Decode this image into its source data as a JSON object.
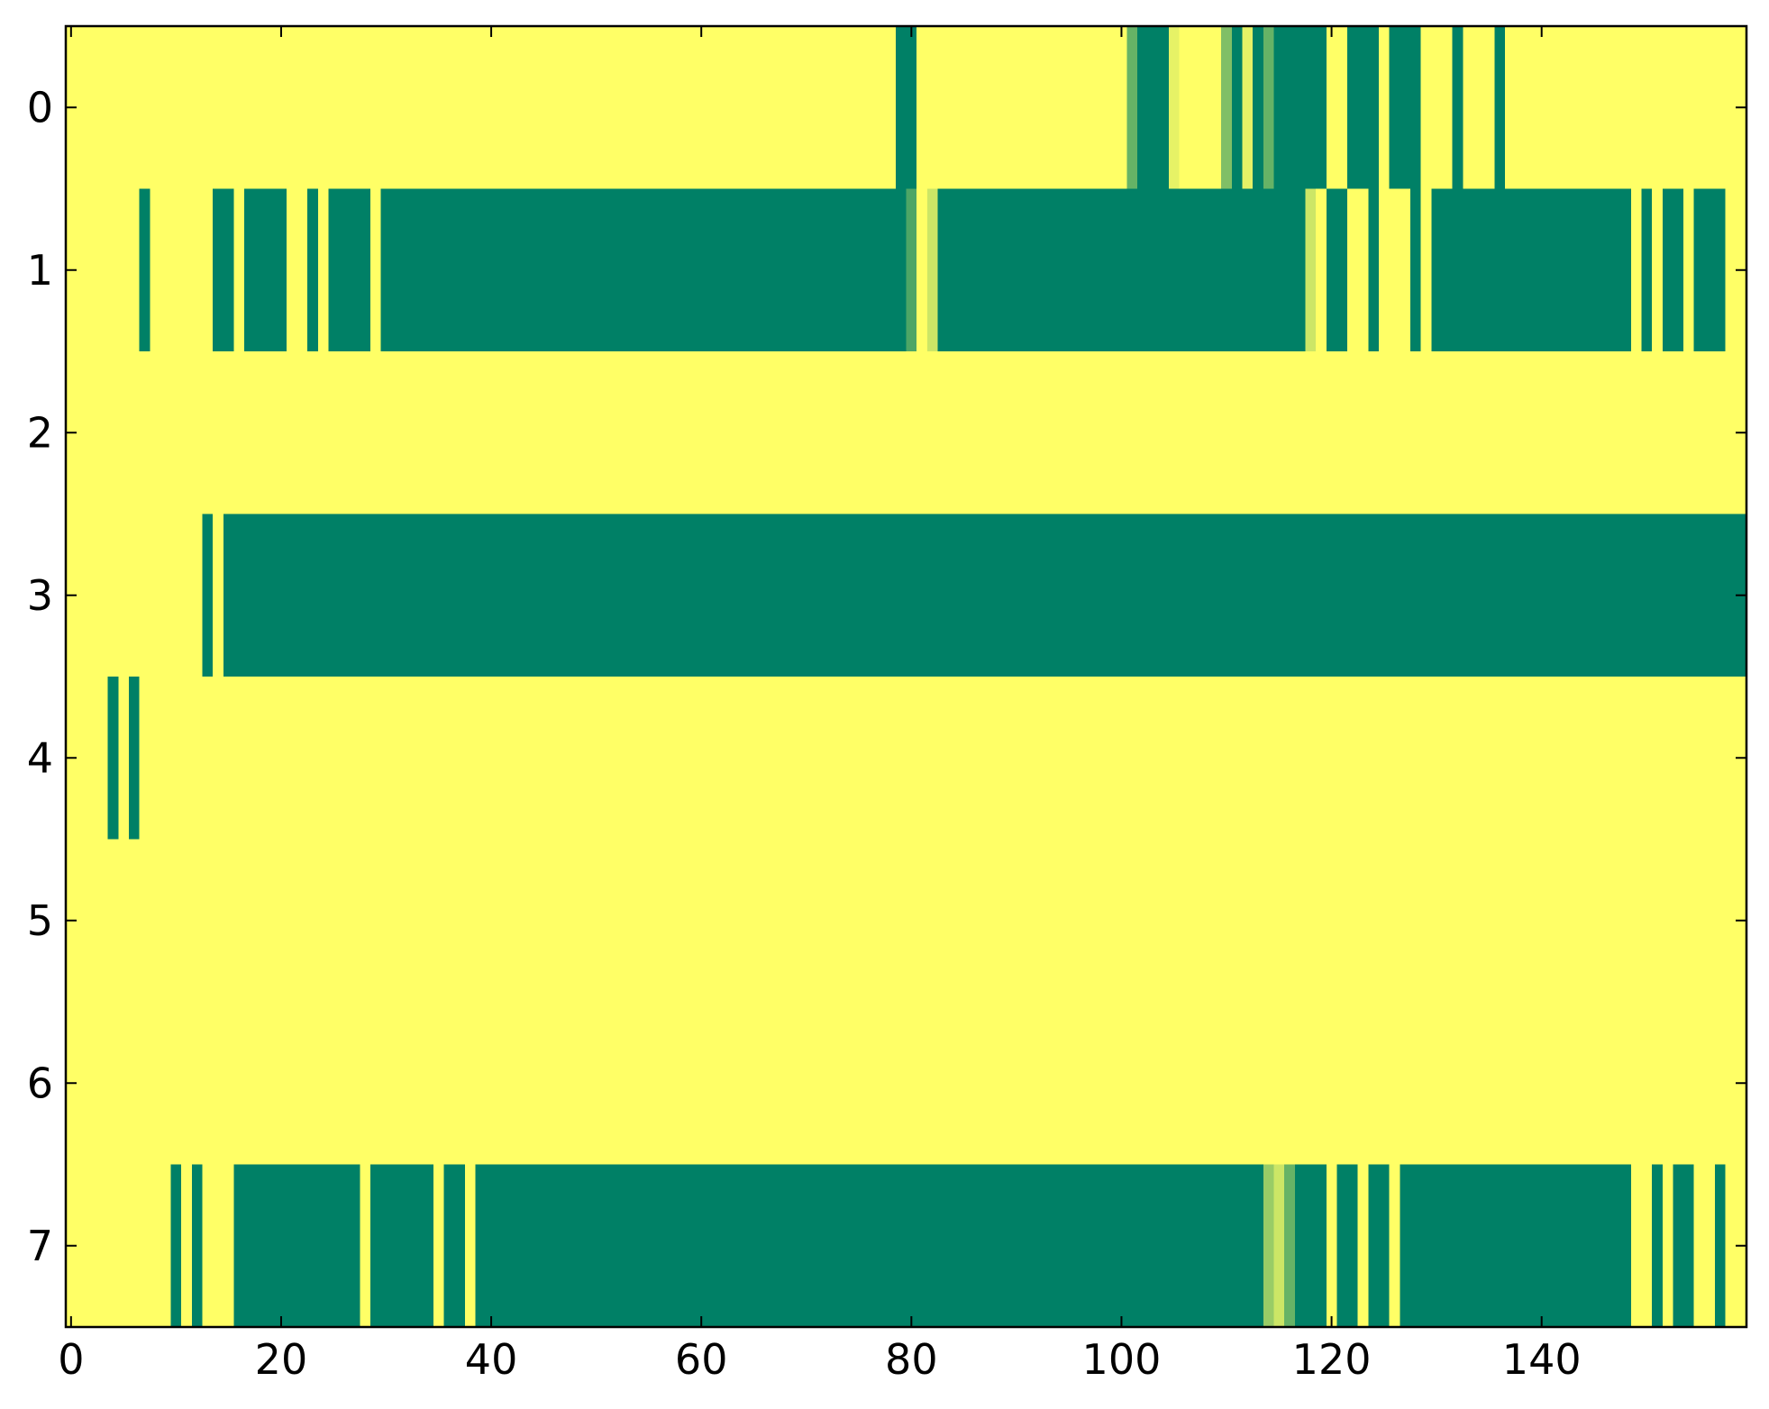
{
  "chart_data": {
    "type": "heatmap",
    "colormap": "summer",
    "xlim": [
      -0.5,
      159.5
    ],
    "ylim": [
      7.5,
      -0.5
    ],
    "xticks": [
      0,
      20,
      40,
      60,
      80,
      100,
      120,
      140
    ],
    "yticks": [
      0,
      1,
      2,
      3,
      4,
      5,
      6,
      7
    ],
    "values": [
      [
        1,
        1,
        1,
        1,
        1,
        1,
        1,
        1,
        1,
        1,
        1,
        1,
        1,
        1,
        1,
        1,
        1,
        1,
        1,
        1,
        1,
        1,
        1,
        1,
        1,
        1,
        1,
        1,
        1,
        1,
        1,
        1,
        1,
        1,
        1,
        1,
        1,
        1,
        1,
        1,
        1,
        1,
        1,
        1,
        1,
        1,
        1,
        1,
        1,
        1,
        1,
        1,
        1,
        1,
        1,
        1,
        1,
        1,
        1,
        1,
        1,
        1,
        1,
        1,
        1,
        1,
        1,
        1,
        1,
        1,
        1,
        1,
        1,
        1,
        1,
        1,
        1,
        1,
        1,
        0,
        0,
        1,
        1,
        1,
        1,
        1,
        1,
        1,
        1,
        1,
        1,
        1,
        1,
        1,
        1,
        1,
        1,
        1,
        1,
        1,
        1,
        0.4,
        0,
        0,
        0,
        0.9,
        1,
        1,
        1,
        1,
        0.5,
        0,
        0.9,
        0,
        0.4,
        0,
        0,
        0,
        0,
        0,
        1,
        1,
        0,
        0,
        0,
        1,
        0,
        0,
        0,
        1,
        1,
        1,
        0,
        1,
        1,
        1,
        0,
        1,
        1,
        1,
        1,
        1,
        1,
        1,
        1,
        1,
        1,
        1,
        1,
        1,
        1,
        1,
        1,
        1,
        1,
        1,
        1,
        1,
        1,
        1
      ],
      [
        1,
        1,
        1,
        1,
        1,
        1,
        1,
        0,
        1,
        1,
        1,
        1,
        1,
        1,
        0,
        0,
        1,
        0,
        0,
        0,
        0,
        1,
        1,
        0,
        1,
        0,
        0,
        0,
        0,
        1,
        0,
        0,
        0,
        0,
        0,
        0,
        0,
        0,
        0,
        0,
        0,
        0,
        0,
        0,
        0,
        0,
        0,
        0,
        0,
        0,
        0,
        0,
        0,
        0,
        0,
        0,
        0,
        0,
        0,
        0,
        0,
        0,
        0,
        0,
        0,
        0,
        0,
        0,
        0,
        0,
        0,
        0,
        0,
        0,
        0,
        0,
        0,
        0,
        0,
        0,
        0.3,
        1,
        0.8,
        0,
        0,
        0,
        0,
        0,
        0,
        0,
        0,
        0,
        0,
        0,
        0,
        0,
        0,
        0,
        0,
        0,
        0,
        0,
        0,
        0,
        0,
        0,
        0,
        0,
        0,
        0,
        0,
        0,
        0,
        0,
        0,
        0,
        0,
        0,
        0.8,
        1,
        0,
        0,
        1,
        1,
        0,
        1,
        1,
        1,
        0,
        1,
        0,
        0,
        0,
        0,
        0,
        0,
        0,
        0,
        0,
        0,
        0,
        0,
        0,
        0,
        0,
        0,
        0,
        0,
        0,
        1,
        0,
        1,
        0,
        0,
        1,
        0,
        0,
        0,
        1,
        1
      ],
      [
        1,
        1,
        1,
        1,
        1,
        1,
        1,
        1,
        1,
        1,
        1,
        1,
        1,
        1,
        1,
        1,
        1,
        1,
        1,
        1,
        1,
        1,
        1,
        1,
        1,
        1,
        1,
        1,
        1,
        1,
        1,
        1,
        1,
        1,
        1,
        1,
        1,
        1,
        1,
        1,
        1,
        1,
        1,
        1,
        1,
        1,
        1,
        1,
        1,
        1,
        1,
        1,
        1,
        1,
        1,
        1,
        1,
        1,
        1,
        1,
        1,
        1,
        1,
        1,
        1,
        1,
        1,
        1,
        1,
        1,
        1,
        1,
        1,
        1,
        1,
        1,
        1,
        1,
        1,
        1,
        1,
        1,
        1,
        1,
        1,
        1,
        1,
        1,
        1,
        1,
        1,
        1,
        1,
        1,
        1,
        1,
        1,
        1,
        1,
        1,
        1,
        1,
        1,
        1,
        1,
        1,
        1,
        1,
        1,
        1,
        1,
        1,
        1,
        1,
        1,
        1,
        1,
        1,
        1,
        1,
        1,
        1,
        1,
        1,
        1,
        1,
        1,
        1,
        1,
        1,
        1,
        1,
        1,
        1,
        1,
        1,
        1,
        1,
        1,
        1,
        1,
        1,
        1,
        1,
        1,
        1,
        1,
        1,
        1,
        1,
        1,
        1,
        1,
        1,
        1,
        1,
        1,
        1,
        1,
        1
      ],
      [
        1,
        1,
        1,
        1,
        1,
        1,
        1,
        1,
        1,
        1,
        1,
        1,
        1,
        0,
        1,
        0,
        0,
        0,
        0,
        0,
        0,
        0,
        0,
        0,
        0,
        0,
        0,
        0,
        0,
        0,
        0,
        0,
        0,
        0,
        0,
        0,
        0,
        0,
        0,
        0,
        0,
        0,
        0,
        0,
        0,
        0,
        0,
        0,
        0,
        0,
        0,
        0,
        0,
        0,
        0,
        0,
        0,
        0,
        0,
        0,
        0,
        0,
        0,
        0,
        0,
        0,
        0,
        0,
        0,
        0,
        0,
        0,
        0,
        0,
        0,
        0,
        0,
        0,
        0,
        0,
        0,
        0,
        0,
        0,
        0,
        0,
        0,
        0,
        0,
        0,
        0,
        0,
        0,
        0,
        0,
        0,
        0,
        0,
        0,
        0,
        0,
        0,
        0,
        0,
        0,
        0,
        0,
        0,
        0,
        0,
        0,
        0,
        0,
        0,
        0,
        0,
        0,
        0,
        0,
        0,
        0,
        0,
        0,
        0,
        0,
        0,
        0,
        0,
        0,
        0,
        0,
        0,
        0,
        0,
        0,
        0,
        0,
        0,
        0,
        0,
        0,
        0,
        0,
        0,
        0,
        0,
        0,
        0,
        0,
        0,
        0,
        0,
        0,
        0,
        0,
        0,
        0,
        0,
        0,
        0
      ],
      [
        1,
        1,
        1,
        1,
        0,
        1,
        0,
        1,
        1,
        1,
        1,
        1,
        1,
        1,
        1,
        1,
        1,
        1,
        1,
        1,
        1,
        1,
        1,
        1,
        1,
        1,
        1,
        1,
        1,
        1,
        1,
        1,
        1,
        1,
        1,
        1,
        1,
        1,
        1,
        1,
        1,
        1,
        1,
        1,
        1,
        1,
        1,
        1,
        1,
        1,
        1,
        1,
        1,
        1,
        1,
        1,
        1,
        1,
        1,
        1,
        1,
        1,
        1,
        1,
        1,
        1,
        1,
        1,
        1,
        1,
        1,
        1,
        1,
        1,
        1,
        1,
        1,
        1,
        1,
        1,
        1,
        1,
        1,
        1,
        1,
        1,
        1,
        1,
        1,
        1,
        1,
        1,
        1,
        1,
        1,
        1,
        1,
        1,
        1,
        1,
        1,
        1,
        1,
        1,
        1,
        1,
        1,
        1,
        1,
        1,
        1,
        1,
        1,
        1,
        1,
        1,
        1,
        1,
        1,
        1,
        1,
        1,
        1,
        1,
        1,
        1,
        1,
        1,
        1,
        1,
        1,
        1,
        1,
        1,
        1,
        1,
        1,
        1,
        1,
        1,
        1,
        1,
        1,
        1,
        1,
        1,
        1,
        1,
        1,
        1,
        1,
        1,
        1,
        1,
        1,
        1,
        1,
        1,
        1,
        1
      ],
      [
        1,
        1,
        1,
        1,
        1,
        1,
        1,
        1,
        1,
        1,
        1,
        1,
        1,
        1,
        1,
        1,
        1,
        1,
        1,
        1,
        1,
        1,
        1,
        1,
        1,
        1,
        1,
        1,
        1,
        1,
        1,
        1,
        1,
        1,
        1,
        1,
        1,
        1,
        1,
        1,
        1,
        1,
        1,
        1,
        1,
        1,
        1,
        1,
        1,
        1,
        1,
        1,
        1,
        1,
        1,
        1,
        1,
        1,
        1,
        1,
        1,
        1,
        1,
        1,
        1,
        1,
        1,
        1,
        1,
        1,
        1,
        1,
        1,
        1,
        1,
        1,
        1,
        1,
        1,
        1,
        1,
        1,
        1,
        1,
        1,
        1,
        1,
        1,
        1,
        1,
        1,
        1,
        1,
        1,
        1,
        1,
        1,
        1,
        1,
        1,
        1,
        1,
        1,
        1,
        1,
        1,
        1,
        1,
        1,
        1,
        1,
        1,
        1,
        1,
        1,
        1,
        1,
        1,
        1,
        1,
        1,
        1,
        1,
        1,
        1,
        1,
        1,
        1,
        1,
        1,
        1,
        1,
        1,
        1,
        1,
        1,
        1,
        1,
        1,
        1,
        1,
        1,
        1,
        1,
        1,
        1,
        1,
        1,
        1,
        1,
        1,
        1,
        1,
        1,
        1,
        1,
        1,
        1,
        1,
        1
      ],
      [
        1,
        1,
        1,
        1,
        1,
        1,
        1,
        1,
        1,
        1,
        1,
        1,
        1,
        1,
        1,
        1,
        1,
        1,
        1,
        1,
        1,
        1,
        1,
        1,
        1,
        1,
        1,
        1,
        1,
        1,
        1,
        1,
        1,
        1,
        1,
        1,
        1,
        1,
        1,
        1,
        1,
        1,
        1,
        1,
        1,
        1,
        1,
        1,
        1,
        1,
        1,
        1,
        1,
        1,
        1,
        1,
        1,
        1,
        1,
        1,
        1,
        1,
        1,
        1,
        1,
        1,
        1,
        1,
        1,
        1,
        1,
        1,
        1,
        1,
        1,
        1,
        1,
        1,
        1,
        1,
        1,
        1,
        1,
        1,
        1,
        1,
        1,
        1,
        1,
        1,
        1,
        1,
        1,
        1,
        1,
        1,
        1,
        1,
        1,
        1,
        1,
        1,
        1,
        1,
        1,
        1,
        1,
        1,
        1,
        1,
        1,
        1,
        1,
        1,
        1,
        1,
        1,
        1,
        1,
        1,
        1,
        1,
        1,
        1,
        1,
        1,
        1,
        1,
        1,
        1,
        1,
        1,
        1,
        1,
        1,
        1,
        1,
        1,
        1,
        1,
        1,
        1,
        1,
        1,
        1,
        1,
        1,
        1,
        1,
        1,
        1,
        1,
        1,
        1,
        1,
        1,
        1,
        1,
        1,
        1
      ],
      [
        1,
        1,
        1,
        1,
        1,
        1,
        1,
        1,
        1,
        1,
        0,
        1,
        0,
        1,
        1,
        1,
        0,
        0,
        0,
        0,
        0,
        0,
        0,
        0,
        0,
        0,
        0,
        0,
        1,
        0,
        0,
        0,
        0,
        0,
        0,
        1,
        0,
        0,
        1,
        0,
        0,
        0,
        0,
        0,
        0,
        0,
        0,
        0,
        0,
        0,
        0,
        0,
        0,
        0,
        0,
        0,
        0,
        0,
        0,
        0,
        0,
        0,
        0,
        0,
        0,
        0,
        0,
        0,
        0,
        0,
        0,
        0,
        0,
        0,
        0,
        0,
        0,
        0,
        0,
        0,
        0,
        0,
        0,
        0,
        0,
        0,
        0,
        0,
        0,
        0,
        0,
        0,
        0,
        0,
        0,
        0,
        0,
        0,
        0,
        0,
        0,
        0,
        0,
        0,
        0,
        0,
        0,
        0,
        0,
        0,
        0,
        0,
        0,
        0,
        0.6,
        0.8,
        0.4,
        0,
        0,
        0,
        1,
        0,
        0,
        1,
        0,
        0,
        1,
        0,
        0,
        0,
        0,
        0,
        0,
        0,
        0,
        0,
        0,
        0,
        0,
        0,
        0,
        0,
        0,
        0,
        0,
        0,
        0,
        0,
        0,
        1,
        1,
        0,
        1,
        0,
        0,
        1,
        1,
        0,
        1,
        1
      ]
    ]
  }
}
